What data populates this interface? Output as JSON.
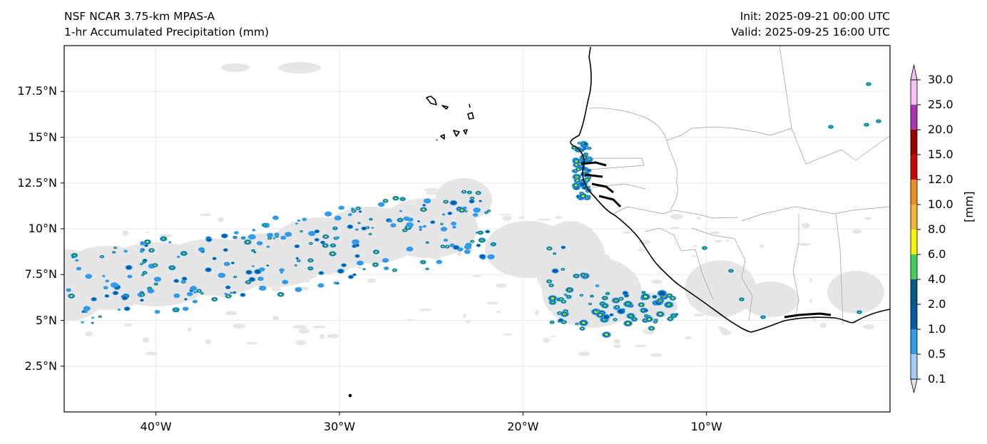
{
  "header": {
    "model": "NSF NCAR 3.75-km MPAS-A",
    "field": "1-hr Accumulated Precipitation (mm)",
    "init": "Init: 2025-09-21 00:00 UTC",
    "valid": "Valid: 2025-09-25 16:00 UTC"
  },
  "map": {
    "lon_range": [
      -45,
      0
    ],
    "lat_range": [
      0,
      20
    ],
    "lat_ticks": [
      {
        "value": 17.5,
        "label": "17.5°N"
      },
      {
        "value": 15,
        "label": "15°N"
      },
      {
        "value": 12.5,
        "label": "12.5°N"
      },
      {
        "value": 10,
        "label": "10°N"
      },
      {
        "value": 7.5,
        "label": "7.5°N"
      },
      {
        "value": 5,
        "label": "5°N"
      },
      {
        "value": 2.5,
        "label": "2.5°N"
      }
    ],
    "lon_ticks": [
      {
        "value": -40,
        "label": "40°W"
      },
      {
        "value": -30,
        "label": "30°W"
      },
      {
        "value": -20,
        "label": "20°W"
      },
      {
        "value": -10,
        "label": "10°W"
      }
    ],
    "gridlines": true,
    "colors": {
      "coast": "#000000",
      "border": "#9a9a9a",
      "grid": "#e8e8e8",
      "frame": "#000000"
    }
  },
  "colorbar": {
    "unit": "[mm]",
    "levels": [
      "0.1",
      "0.5",
      "1.0",
      "2.0",
      "4.0",
      "6.0",
      "8.0",
      "10.0",
      "12.0",
      "15.0",
      "20.0",
      "25.0",
      "30.0"
    ],
    "colors": [
      "#e6e6e6",
      "#a5cdf2",
      "#2f9bea",
      "#005ba0",
      "#005a86",
      "#3fd25b",
      "#f6f30a",
      "#f5b23e",
      "#e88d27",
      "#c40a0a",
      "#9a0000",
      "#ad34b0",
      "#f7c1f6"
    ],
    "extend": "both"
  }
}
